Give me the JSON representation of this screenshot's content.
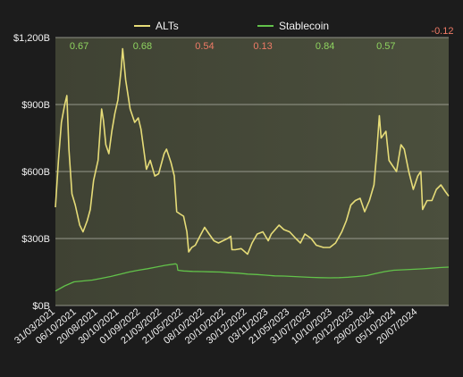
{
  "colors": {
    "background": "#1c1c1c",
    "plot_background": "#4b4f3d",
    "alts_line": "#e6dc78",
    "stablecoin_line": "#62c24a",
    "positive_corr": "#8fd460",
    "negative_corr": "#ee7a66",
    "gridline": "#b9bbb0",
    "text": "#f2f2f2"
  },
  "chart_data": {
    "type": "line",
    "title": "",
    "xlabel": "",
    "ylabel": "",
    "ylim": [
      0,
      1200
    ],
    "y_unit": "B",
    "y_ticks": [
      0,
      300,
      600,
      900,
      1200
    ],
    "y_tick_labels": [
      "$0B",
      "$300B",
      "$600B",
      "$900B",
      "$1,200B"
    ],
    "grid": true,
    "legend_position": "top",
    "x_range": [
      "2021-03-31",
      "2024-10-31"
    ],
    "x_ticks": [
      "2021-03-31",
      "2021-06-10",
      "2021-08-20",
      "2021-10-30",
      "2022-01-09",
      "2022-03-21",
      "2022-05-31",
      "2022-08-10",
      "2022-10-20",
      "2022-12-30",
      "2023-03-11",
      "2023-05-21",
      "2023-07-31",
      "2023-10-10",
      "2023-12-20",
      "2024-02-29",
      "2024-05-10",
      "2024-07-20"
    ],
    "x_tick_labels": [
      "31/03/2021",
      "06/10/2021",
      "20/08/2021",
      "30/10/2021",
      "01/09/2022",
      "21/03/2022",
      "21/05/2022",
      "08/10/2022",
      "20/10/2022",
      "30/12/2022",
      "03/11/2023",
      "21/05/2023",
      "31/07/2023",
      "10/10/2023",
      "20/12/2023",
      "29/02/2024",
      "05/10/2024",
      "20/07/2024"
    ],
    "series": [
      {
        "name": "ALTs",
        "points": [
          [
            "2021-03-31",
            440
          ],
          [
            "2021-04-10",
            650
          ],
          [
            "2021-04-20",
            820
          ],
          [
            "2021-05-01",
            900
          ],
          [
            "2021-05-08",
            940
          ],
          [
            "2021-05-15",
            700
          ],
          [
            "2021-05-25",
            500
          ],
          [
            "2021-06-05",
            450
          ],
          [
            "2021-06-20",
            360
          ],
          [
            "2021-07-01",
            330
          ],
          [
            "2021-07-15",
            380
          ],
          [
            "2021-07-25",
            430
          ],
          [
            "2021-08-05",
            560
          ],
          [
            "2021-08-20",
            650
          ],
          [
            "2021-09-01",
            880
          ],
          [
            "2021-09-07",
            830
          ],
          [
            "2021-09-15",
            720
          ],
          [
            "2021-09-25",
            680
          ],
          [
            "2021-10-05",
            780
          ],
          [
            "2021-10-15",
            860
          ],
          [
            "2021-10-25",
            920
          ],
          [
            "2021-11-05",
            1060
          ],
          [
            "2021-11-10",
            1150
          ],
          [
            "2021-11-20",
            1010
          ],
          [
            "2021-12-05",
            880
          ],
          [
            "2021-12-20",
            820
          ],
          [
            "2022-01-01",
            840
          ],
          [
            "2022-01-10",
            790
          ],
          [
            "2022-01-20",
            690
          ],
          [
            "2022-01-28",
            610
          ],
          [
            "2022-02-10",
            650
          ],
          [
            "2022-02-25",
            580
          ],
          [
            "2022-03-10",
            590
          ],
          [
            "2022-03-28",
            680
          ],
          [
            "2022-04-05",
            700
          ],
          [
            "2022-04-20",
            640
          ],
          [
            "2022-05-01",
            580
          ],
          [
            "2022-05-09",
            420
          ],
          [
            "2022-05-20",
            410
          ],
          [
            "2022-06-01",
            400
          ],
          [
            "2022-06-12",
            330
          ],
          [
            "2022-06-18",
            240
          ],
          [
            "2022-06-28",
            260
          ],
          [
            "2022-07-10",
            270
          ],
          [
            "2022-07-25",
            310
          ],
          [
            "2022-08-10",
            350
          ],
          [
            "2022-08-25",
            320
          ],
          [
            "2022-09-10",
            290
          ],
          [
            "2022-09-25",
            280
          ],
          [
            "2022-10-10",
            290
          ],
          [
            "2022-10-25",
            300
          ],
          [
            "2022-11-05",
            310
          ],
          [
            "2022-11-09",
            250
          ],
          [
            "2022-11-20",
            250
          ],
          [
            "2022-12-10",
            255
          ],
          [
            "2022-12-31",
            230
          ],
          [
            "2023-01-15",
            280
          ],
          [
            "2023-02-01",
            320
          ],
          [
            "2023-02-20",
            330
          ],
          [
            "2023-03-10",
            290
          ],
          [
            "2023-03-20",
            320
          ],
          [
            "2023-04-15",
            360
          ],
          [
            "2023-05-01",
            340
          ],
          [
            "2023-05-20",
            330
          ],
          [
            "2023-06-10",
            300
          ],
          [
            "2023-06-25",
            280
          ],
          [
            "2023-07-10",
            320
          ],
          [
            "2023-07-31",
            300
          ],
          [
            "2023-08-17",
            270
          ],
          [
            "2023-09-10",
            260
          ],
          [
            "2023-10-01",
            260
          ],
          [
            "2023-10-20",
            280
          ],
          [
            "2023-11-10",
            330
          ],
          [
            "2023-11-25",
            380
          ],
          [
            "2023-12-10",
            450
          ],
          [
            "2023-12-25",
            470
          ],
          [
            "2024-01-10",
            480
          ],
          [
            "2024-01-25",
            420
          ],
          [
            "2024-02-10",
            470
          ],
          [
            "2024-02-25",
            540
          ],
          [
            "2024-03-05",
            680
          ],
          [
            "2024-03-14",
            850
          ],
          [
            "2024-03-20",
            750
          ],
          [
            "2024-04-05",
            780
          ],
          [
            "2024-04-15",
            650
          ],
          [
            "2024-04-25",
            630
          ],
          [
            "2024-05-10",
            600
          ],
          [
            "2024-05-25",
            720
          ],
          [
            "2024-06-05",
            700
          ],
          [
            "2024-06-20",
            600
          ],
          [
            "2024-07-05",
            520
          ],
          [
            "2024-07-20",
            580
          ],
          [
            "2024-07-30",
            600
          ],
          [
            "2024-08-05",
            430
          ],
          [
            "2024-08-20",
            470
          ],
          [
            "2024-09-05",
            470
          ],
          [
            "2024-09-20",
            520
          ],
          [
            "2024-10-05",
            540
          ],
          [
            "2024-10-20",
            510
          ],
          [
            "2024-10-31",
            490
          ]
        ]
      },
      {
        "name": "Stablecoin",
        "points": [
          [
            "2021-03-31",
            65
          ],
          [
            "2021-05-01",
            88
          ],
          [
            "2021-06-01",
            106
          ],
          [
            "2021-07-01",
            110
          ],
          [
            "2021-08-01",
            114
          ],
          [
            "2021-09-01",
            122
          ],
          [
            "2021-10-01",
            130
          ],
          [
            "2021-11-01",
            140
          ],
          [
            "2021-12-01",
            150
          ],
          [
            "2022-01-01",
            158
          ],
          [
            "2022-02-01",
            165
          ],
          [
            "2022-03-01",
            172
          ],
          [
            "2022-04-01",
            180
          ],
          [
            "2022-05-05",
            187
          ],
          [
            "2022-05-10",
            183
          ],
          [
            "2022-05-13",
            158
          ],
          [
            "2022-06-01",
            155
          ],
          [
            "2022-07-01",
            153
          ],
          [
            "2022-08-01",
            152
          ],
          [
            "2022-09-01",
            151
          ],
          [
            "2022-10-01",
            150
          ],
          [
            "2022-11-01",
            147
          ],
          [
            "2022-12-01",
            145
          ],
          [
            "2023-01-01",
            141
          ],
          [
            "2023-02-01",
            139
          ],
          [
            "2023-03-01",
            136
          ],
          [
            "2023-04-01",
            133
          ],
          [
            "2023-05-01",
            132
          ],
          [
            "2023-06-01",
            130
          ],
          [
            "2023-07-01",
            128
          ],
          [
            "2023-08-01",
            126
          ],
          [
            "2023-09-01",
            125
          ],
          [
            "2023-10-01",
            124
          ],
          [
            "2023-11-01",
            125
          ],
          [
            "2023-12-01",
            127
          ],
          [
            "2024-01-01",
            130
          ],
          [
            "2024-02-01",
            134
          ],
          [
            "2024-03-01",
            143
          ],
          [
            "2024-04-01",
            152
          ],
          [
            "2024-05-01",
            158
          ],
          [
            "2024-06-01",
            160
          ],
          [
            "2024-07-01",
            162
          ],
          [
            "2024-08-01",
            164
          ],
          [
            "2024-09-01",
            167
          ],
          [
            "2024-10-01",
            170
          ],
          [
            "2024-10-31",
            172
          ]
        ]
      }
    ],
    "annotations": [
      {
        "text": "0.67",
        "date": "2021-06-18",
        "sign": "positive"
      },
      {
        "text": "0.68",
        "date": "2022-01-15",
        "sign": "positive"
      },
      {
        "text": "0.54",
        "date": "2022-08-10",
        "sign": "negative"
      },
      {
        "text": "0.13",
        "date": "2023-02-20",
        "sign": "negative"
      },
      {
        "text": "0.84",
        "date": "2023-09-15",
        "sign": "positive"
      },
      {
        "text": "0.57",
        "date": "2024-04-05",
        "sign": "positive"
      },
      {
        "text": "-0.12",
        "date": "2024-10-10",
        "sign": "negative",
        "above_plot": true
      }
    ]
  }
}
